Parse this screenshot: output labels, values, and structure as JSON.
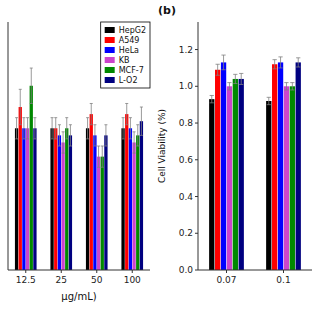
{
  "chart_data": [
    {
      "type": "bar",
      "xlabel": "μg/mL)",
      "categories": [
        "12.5",
        "25",
        "50",
        "100"
      ],
      "ylim": [
        0.8,
        1.15
      ],
      "yticks": [],
      "tick_labels": "x",
      "grid": false,
      "legend": "upper right",
      "series": [
        {
          "name": "HepG2",
          "color": "#000000",
          "values": [
            1.0,
            1.0,
            1.0,
            1.0
          ],
          "errors": [
            0.015,
            0.015,
            0.015,
            0.015
          ]
        },
        {
          "name": "A549",
          "color": "#ff0000",
          "values": [
            1.03,
            1.0,
            1.02,
            1.02
          ],
          "errors": [
            0.025,
            0.015,
            0.015,
            0.015
          ]
        },
        {
          "name": "HeLa",
          "color": "#0000ff",
          "values": [
            1.0,
            0.99,
            0.99,
            1.0
          ],
          "errors": [
            0.015,
            0.015,
            0.015,
            0.015
          ]
        },
        {
          "name": "KB",
          "color": "#cc44cc",
          "values": [
            1.0,
            0.98,
            0.96,
            0.98
          ],
          "errors": [
            0.015,
            0.015,
            0.015,
            0.015
          ]
        },
        {
          "name": "MCF-7",
          "color": "#008800",
          "values": [
            1.06,
            1.0,
            0.96,
            0.99
          ],
          "errors": [
            0.025,
            0.015,
            0.015,
            0.015
          ]
        },
        {
          "name": "L-O2",
          "color": "#000080",
          "values": [
            1.0,
            0.99,
            0.99,
            1.01
          ],
          "errors": [
            0.015,
            0.015,
            0.015,
            0.02
          ]
        }
      ]
    },
    {
      "type": "bar",
      "ylabel": "Cell Viability (%)",
      "annotations": [
        "(b)"
      ],
      "categories": [
        "0.07",
        "0.1"
      ],
      "ylim": [
        0.0,
        1.35
      ],
      "yticks": [
        {
          "value": 0.0,
          "label": "0.0"
        },
        0.2,
        0.4,
        0.6,
        0.8,
        {
          "value": 1.0,
          "label": "1.0"
        },
        1.2
      ],
      "grid": false,
      "series": [
        {
          "color": "#000000",
          "values": [
            0.93,
            0.92
          ],
          "errors": [
            0.02,
            0.02
          ]
        },
        {
          "color": "#ff0000",
          "values": [
            1.09,
            1.12
          ],
          "errors": [
            0.03,
            0.025
          ]
        },
        {
          "color": "#0000ff",
          "values": [
            1.13,
            1.13
          ],
          "errors": [
            0.04,
            0.03
          ]
        },
        {
          "color": "#cc44cc",
          "values": [
            1.0,
            1.0
          ],
          "errors": [
            0.02,
            0.02
          ]
        },
        {
          "color": "#008800",
          "values": [
            1.04,
            1.0
          ],
          "errors": [
            0.025,
            0.02
          ]
        },
        {
          "color": "#000080",
          "values": [
            1.04,
            1.13
          ],
          "errors": [
            0.03,
            0.025
          ]
        }
      ]
    }
  ]
}
